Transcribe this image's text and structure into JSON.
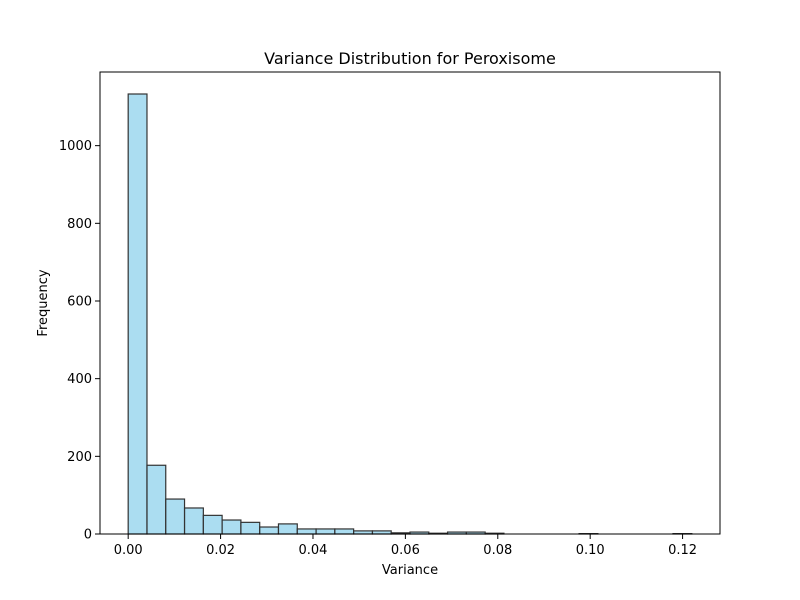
{
  "chart_data": {
    "type": "bar",
    "title": "Variance Distribution for Peroxisome",
    "xlabel": "Variance",
    "ylabel": "Frequency",
    "bar_color": "#87CEEB",
    "bar_edge_color": "#333333",
    "bins": [
      {
        "x0": 0.0,
        "x1": 0.00407,
        "count": 1133
      },
      {
        "x0": 0.00407,
        "x1": 0.00813,
        "count": 177
      },
      {
        "x0": 0.00813,
        "x1": 0.0122,
        "count": 90
      },
      {
        "x0": 0.0122,
        "x1": 0.01627,
        "count": 67
      },
      {
        "x0": 0.01627,
        "x1": 0.02033,
        "count": 48
      },
      {
        "x0": 0.02033,
        "x1": 0.0244,
        "count": 36
      },
      {
        "x0": 0.0244,
        "x1": 0.02847,
        "count": 30
      },
      {
        "x0": 0.02847,
        "x1": 0.03253,
        "count": 18
      },
      {
        "x0": 0.03253,
        "x1": 0.0366,
        "count": 26
      },
      {
        "x0": 0.0366,
        "x1": 0.04067,
        "count": 13
      },
      {
        "x0": 0.04067,
        "x1": 0.04473,
        "count": 13
      },
      {
        "x0": 0.04473,
        "x1": 0.0488,
        "count": 13
      },
      {
        "x0": 0.0488,
        "x1": 0.05287,
        "count": 8
      },
      {
        "x0": 0.05287,
        "x1": 0.05693,
        "count": 8
      },
      {
        "x0": 0.05693,
        "x1": 0.061,
        "count": 3
      },
      {
        "x0": 0.061,
        "x1": 0.06507,
        "count": 5
      },
      {
        "x0": 0.06507,
        "x1": 0.06913,
        "count": 2
      },
      {
        "x0": 0.06913,
        "x1": 0.0732,
        "count": 5
      },
      {
        "x0": 0.0732,
        "x1": 0.07727,
        "count": 5
      },
      {
        "x0": 0.07727,
        "x1": 0.08133,
        "count": 2
      },
      {
        "x0": 0.08133,
        "x1": 0.0854,
        "count": 0
      },
      {
        "x0": 0.0854,
        "x1": 0.08947,
        "count": 0
      },
      {
        "x0": 0.08947,
        "x1": 0.09353,
        "count": 0
      },
      {
        "x0": 0.09353,
        "x1": 0.0976,
        "count": 0
      },
      {
        "x0": 0.0976,
        "x1": 0.10167,
        "count": 1
      },
      {
        "x0": 0.10167,
        "x1": 0.10573,
        "count": 0
      },
      {
        "x0": 0.10573,
        "x1": 0.1098,
        "count": 0
      },
      {
        "x0": 0.1098,
        "x1": 0.11387,
        "count": 0
      },
      {
        "x0": 0.11387,
        "x1": 0.11793,
        "count": 0
      },
      {
        "x0": 0.11793,
        "x1": 0.122,
        "count": 1
      }
    ],
    "xlim": [
      -0.0061,
      0.1281
    ],
    "ylim": [
      0,
      1189.65
    ],
    "xticks": [
      0.0,
      0.02,
      0.04,
      0.06,
      0.08,
      0.1,
      0.12
    ],
    "xtick_labels": [
      "0.00",
      "0.02",
      "0.04",
      "0.06",
      "0.08",
      "0.10",
      "0.12"
    ],
    "yticks": [
      0,
      200,
      400,
      600,
      800,
      1000
    ],
    "ytick_labels": [
      "0",
      "200",
      "400",
      "600",
      "800",
      "1000"
    ],
    "grid": false,
    "legend": "none"
  }
}
